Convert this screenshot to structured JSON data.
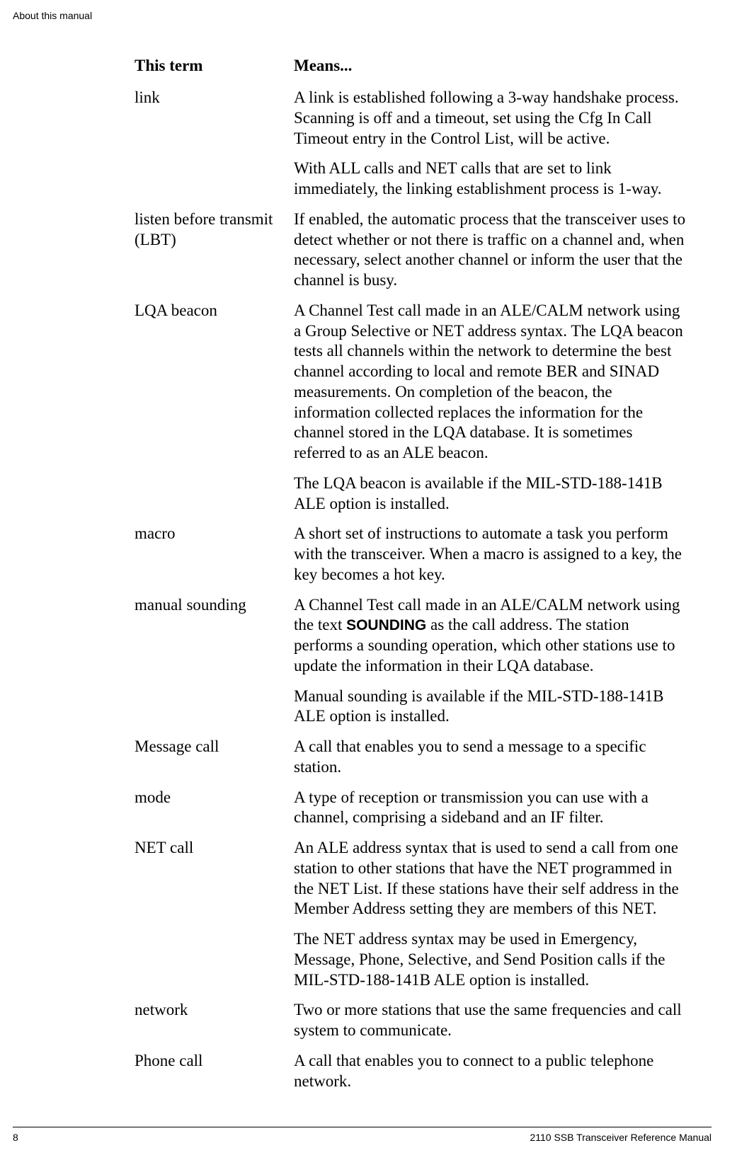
{
  "header": {
    "section": "About this manual"
  },
  "table": {
    "headers": {
      "term": "This term",
      "means": "Means..."
    },
    "rows": [
      {
        "term": "link",
        "paras": [
          "A link is established following a 3-way handshake process. Scanning is off and a timeout, set using the Cfg In Call Timeout entry in the Control List, will be active.",
          "With ALL calls and NET calls that are set to link immediately, the linking establishment process is 1-way."
        ]
      },
      {
        "term": "listen before transmit (LBT)",
        "paras": [
          "If enabled, the automatic process that the transceiver uses to detect whether or not there is traffic on a channel and, when necessary, select another channel or inform the user that the channel is busy."
        ]
      },
      {
        "term": "LQA beacon",
        "paras": [
          "A Channel Test call made in an ALE/CALM network using a Group Selective or NET address syntax. The LQA beacon tests all channels within the network to determine the best channel according to local and remote BER and SINAD measurements. On completion of the beacon, the information collected replaces the information for the channel stored in the LQA database. It is sometimes referred to as an ALE beacon.",
          "The LQA beacon is available if the MIL-STD-188-141B ALE option is installed."
        ]
      },
      {
        "term": "macro",
        "paras": [
          "A short set of instructions to automate a task you perform with the transceiver. When a macro is assigned to a key, the key becomes a hot key."
        ]
      },
      {
        "term": "manual sounding",
        "paras": [
          "A Channel Test call made in an ALE/CALM network using the text |BOLD|SOUNDING|/BOLD| as the call address. The station performs a sounding operation, which other stations use to update the information in their LQA database.",
          "Manual sounding is available if the MIL-STD-188-141B ALE option is installed."
        ]
      },
      {
        "term": "Message call",
        "paras": [
          "A call that enables you to send a message to a specific station."
        ]
      },
      {
        "term": "mode",
        "paras": [
          "A type of reception or transmission you can use with a channel, comprising a sideband and an IF filter."
        ]
      },
      {
        "term": "NET call",
        "paras": [
          "An ALE address syntax that is used to send a call from one station to other stations that have the NET programmed in the NET List. If these stations have their self address in the Member Address setting they are members of this NET.",
          "The NET address syntax may be used in Emergency, Message, Phone, Selective, and Send Position calls if the MIL-STD-188-141B ALE option is installed."
        ]
      },
      {
        "term": "network",
        "paras": [
          "Two or more stations that use the same frequencies and call system to communicate."
        ]
      },
      {
        "term": "Phone call",
        "paras": [
          "A call that enables you to connect to a public telephone network."
        ]
      }
    ]
  },
  "footer": {
    "page": "8",
    "title": "2110 SSB Transceiver Reference Manual"
  }
}
